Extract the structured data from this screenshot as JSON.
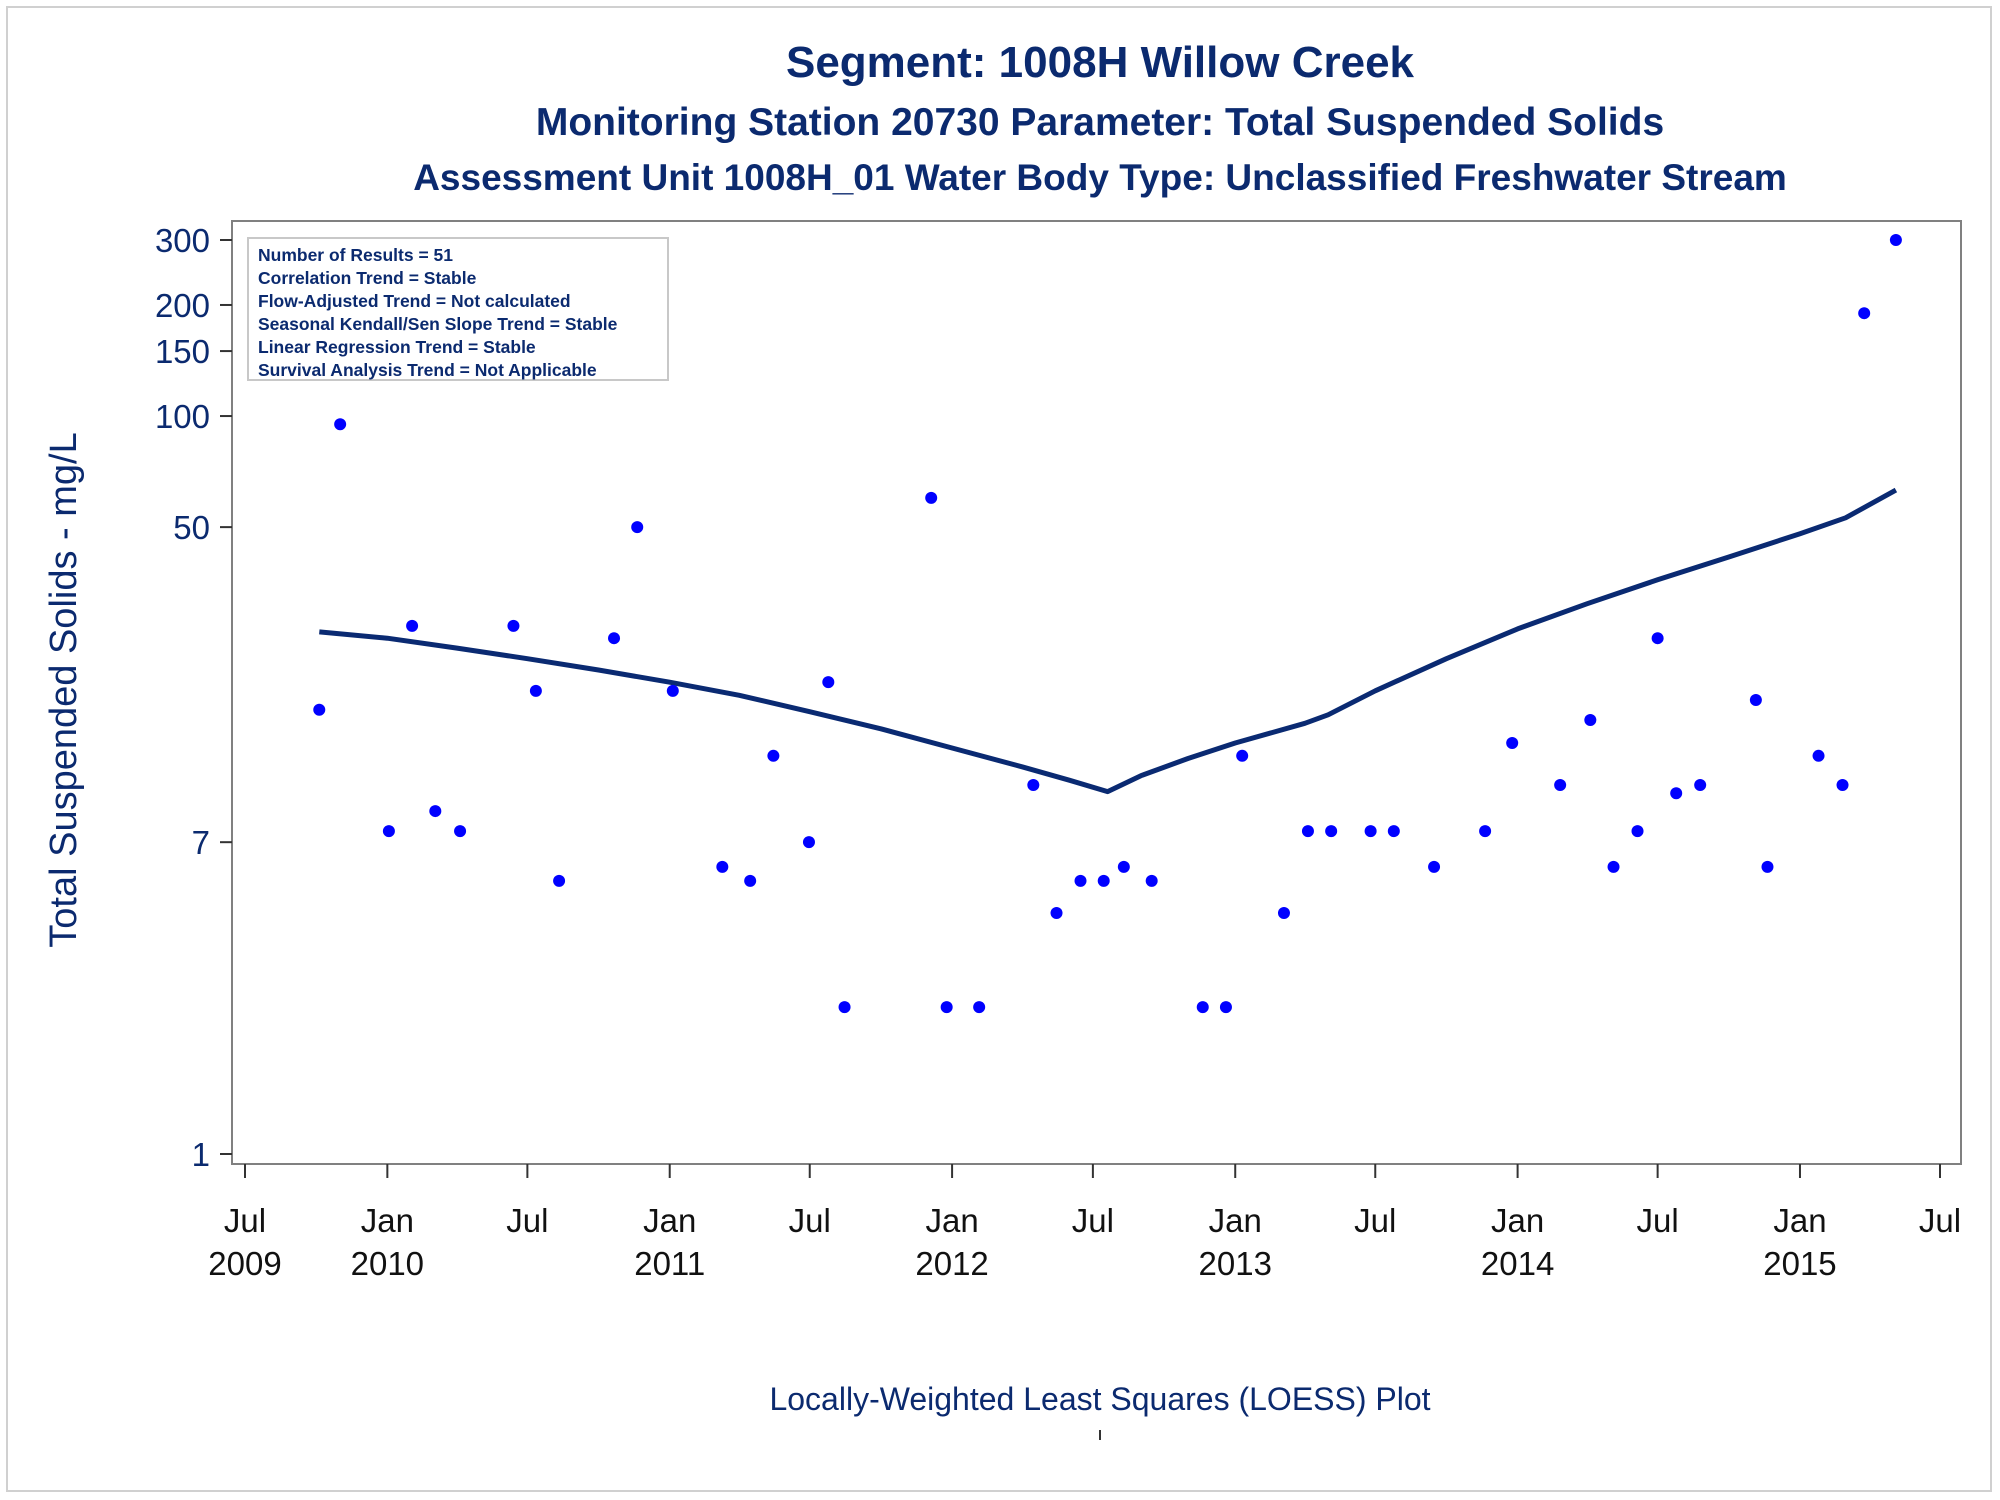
{
  "title": "Segment: 1008H  Willow Creek",
  "subtitle1": "Monitoring Station 20730 Parameter: Total Suspended Solids",
  "subtitle2": "Assessment Unit 1008H_01   Water Body Type: Unclassified Freshwater Stream",
  "footer": "Locally-Weighted Least Squares (LOESS) Plot",
  "colors": {
    "text": "#0b2a6f",
    "points": "#0000ff",
    "line": "#0a2a72",
    "axis": "#808080"
  },
  "chart_data": {
    "type": "scatter",
    "ylabel": "Total Suspended Solids - mg/L",
    "yscale": "log",
    "ylim": [
      1,
      300
    ],
    "xlim": [
      "2009-07-01",
      "2015-07-01"
    ],
    "y_ticks": [
      {
        "value": 1,
        "label": "1"
      },
      {
        "value": 7,
        "label": "7"
      },
      {
        "value": 50,
        "label": "50"
      },
      {
        "value": 100,
        "label": "100"
      },
      {
        "value": 150,
        "label": "150"
      },
      {
        "value": 200,
        "label": "200"
      },
      {
        "value": 300,
        "label": "300"
      }
    ],
    "x_ticks": [
      {
        "date": "2009-07-01",
        "label": "Jul",
        "year": "2009"
      },
      {
        "date": "2010-01-01",
        "label": "Jan",
        "year": "2010"
      },
      {
        "date": "2010-07-01",
        "label": "Jul",
        "year": ""
      },
      {
        "date": "2011-01-01",
        "label": "Jan",
        "year": "2011"
      },
      {
        "date": "2011-07-01",
        "label": "Jul",
        "year": ""
      },
      {
        "date": "2012-01-01",
        "label": "Jan",
        "year": "2012"
      },
      {
        "date": "2012-07-01",
        "label": "Jul",
        "year": ""
      },
      {
        "date": "2013-01-01",
        "label": "Jan",
        "year": "2013"
      },
      {
        "date": "2013-07-01",
        "label": "Jul",
        "year": ""
      },
      {
        "date": "2014-01-01",
        "label": "Jan",
        "year": "2014"
      },
      {
        "date": "2014-07-01",
        "label": "Jul",
        "year": ""
      },
      {
        "date": "2015-01-01",
        "label": "Jan",
        "year": "2015"
      },
      {
        "date": "2015-07-01",
        "label": "Jul",
        "year": ""
      }
    ],
    "legend_lines": [
      "Number of Results = 51",
      "Correlation Trend = Stable",
      "Flow-Adjusted Trend = Not calculated",
      "Seasonal Kendall/Sen Slope Trend = Stable",
      "Linear Regression Trend = Stable",
      "Survival Analysis Trend = Not Applicable"
    ],
    "legend_position": "top-left",
    "points": [
      {
        "x": "2009-10-05",
        "y": 16
      },
      {
        "x": "2009-11-01",
        "y": 95
      },
      {
        "x": "2010-01-03",
        "y": 7.5
      },
      {
        "x": "2010-02-02",
        "y": 27
      },
      {
        "x": "2010-03-04",
        "y": 8.5
      },
      {
        "x": "2010-04-05",
        "y": 7.5
      },
      {
        "x": "2010-06-13",
        "y": 27
      },
      {
        "x": "2010-07-12",
        "y": 18
      },
      {
        "x": "2010-08-11",
        "y": 5.5
      },
      {
        "x": "2010-10-21",
        "y": 25
      },
      {
        "x": "2010-11-20",
        "y": 50
      },
      {
        "x": "2011-01-05",
        "y": 18
      },
      {
        "x": "2011-03-10",
        "y": 6
      },
      {
        "x": "2011-04-15",
        "y": 5.5
      },
      {
        "x": "2011-05-15",
        "y": 12
      },
      {
        "x": "2011-06-30",
        "y": 7
      },
      {
        "x": "2011-07-25",
        "y": 19
      },
      {
        "x": "2011-08-15",
        "y": 2.5
      },
      {
        "x": "2011-12-05",
        "y": 60
      },
      {
        "x": "2011-12-25",
        "y": 2.5
      },
      {
        "x": "2012-02-05",
        "y": 2.5
      },
      {
        "x": "2012-04-15",
        "y": 10
      },
      {
        "x": "2012-05-15",
        "y": 4.5
      },
      {
        "x": "2012-06-15",
        "y": 5.5
      },
      {
        "x": "2012-07-15",
        "y": 5.5
      },
      {
        "x": "2012-08-10",
        "y": 6
      },
      {
        "x": "2012-09-15",
        "y": 5.5
      },
      {
        "x": "2012-11-20",
        "y": 2.5
      },
      {
        "x": "2012-12-20",
        "y": 2.5
      },
      {
        "x": "2013-01-10",
        "y": 12
      },
      {
        "x": "2013-03-05",
        "y": 4.5
      },
      {
        "x": "2013-04-05",
        "y": 7.5
      },
      {
        "x": "2013-05-05",
        "y": 7.5
      },
      {
        "x": "2013-06-25",
        "y": 7.5
      },
      {
        "x": "2013-07-25",
        "y": 7.5
      },
      {
        "x": "2013-09-15",
        "y": 6
      },
      {
        "x": "2013-11-20",
        "y": 7.5
      },
      {
        "x": "2013-12-25",
        "y": 13
      },
      {
        "x": "2014-02-25",
        "y": 10
      },
      {
        "x": "2014-04-05",
        "y": 15
      },
      {
        "x": "2014-05-05",
        "y": 6
      },
      {
        "x": "2014-06-05",
        "y": 7.5
      },
      {
        "x": "2014-07-01",
        "y": 25
      },
      {
        "x": "2014-07-25",
        "y": 9.5
      },
      {
        "x": "2014-08-25",
        "y": 10
      },
      {
        "x": "2014-11-05",
        "y": 17
      },
      {
        "x": "2014-11-20",
        "y": 6
      },
      {
        "x": "2015-01-25",
        "y": 12
      },
      {
        "x": "2015-02-25",
        "y": 10
      },
      {
        "x": "2015-03-25",
        "y": 190
      },
      {
        "x": "2015-05-05",
        "y": 300
      }
    ],
    "loess_line": [
      {
        "x": "2009-10-05",
        "y": 26
      },
      {
        "x": "2010-01-01",
        "y": 25
      },
      {
        "x": "2010-04-01",
        "y": 23.5
      },
      {
        "x": "2010-07-01",
        "y": 22
      },
      {
        "x": "2010-10-01",
        "y": 20.5
      },
      {
        "x": "2011-01-01",
        "y": 19
      },
      {
        "x": "2011-04-01",
        "y": 17.5
      },
      {
        "x": "2011-07-01",
        "y": 15.8
      },
      {
        "x": "2011-10-01",
        "y": 14.2
      },
      {
        "x": "2012-01-01",
        "y": 12.6
      },
      {
        "x": "2012-04-01",
        "y": 11.2
      },
      {
        "x": "2012-06-01",
        "y": 10.3
      },
      {
        "x": "2012-07-20",
        "y": 9.6
      },
      {
        "x": "2012-09-01",
        "y": 10.6
      },
      {
        "x": "2012-11-01",
        "y": 11.8
      },
      {
        "x": "2013-01-01",
        "y": 13.0
      },
      {
        "x": "2013-04-01",
        "y": 14.7
      },
      {
        "x": "2013-05-01",
        "y": 15.5
      },
      {
        "x": "2013-07-01",
        "y": 18.0
      },
      {
        "x": "2013-10-01",
        "y": 22.0
      },
      {
        "x": "2014-01-01",
        "y": 26.5
      },
      {
        "x": "2014-04-01",
        "y": 31.0
      },
      {
        "x": "2014-07-01",
        "y": 36.0
      },
      {
        "x": "2014-10-01",
        "y": 41.5
      },
      {
        "x": "2015-01-01",
        "y": 48.0
      },
      {
        "x": "2015-03-01",
        "y": 53.0
      },
      {
        "x": "2015-05-05",
        "y": 63.0
      }
    ]
  }
}
